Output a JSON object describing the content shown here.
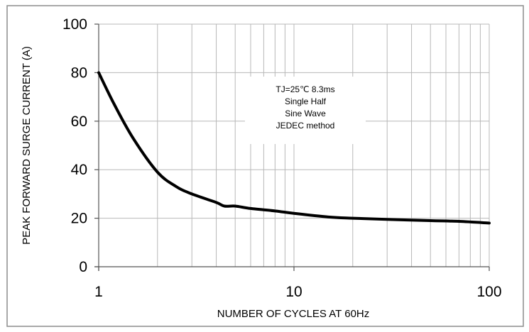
{
  "chart_data": {
    "type": "line",
    "title": "",
    "xlabel": "NUMBER OF CYCLES AT 60Hz",
    "ylabel": "PEAK FORWARD SURGE CURRENT (A)",
    "x_scale": "log",
    "xlim": [
      1,
      100
    ],
    "ylim": [
      0,
      100
    ],
    "x_ticks": [
      1,
      10,
      100
    ],
    "x_tick_labels": [
      "1",
      "10",
      "100"
    ],
    "y_ticks": [
      0,
      20,
      40,
      60,
      80,
      100
    ],
    "y_tick_labels": [
      "0",
      "20",
      "40",
      "60",
      "80",
      "100"
    ],
    "grid": true,
    "legend": "none",
    "annotation": [
      "TJ=25℃ 8.3ms",
      "Single Half",
      "Sine Wave",
      "JEDEC method"
    ],
    "series": [
      {
        "x": [
          1,
          1.2,
          1.5,
          2,
          2.5,
          3,
          4,
          4.4,
          5,
          6,
          8,
          10,
          15,
          20,
          30,
          50,
          70,
          100
        ],
        "y": [
          80,
          67,
          53,
          39,
          33,
          30,
          26.5,
          25,
          25,
          24,
          23,
          22,
          20.5,
          20,
          19.5,
          19,
          18.7,
          18
        ]
      }
    ],
    "line_color": "#000000",
    "grid_color": "#b8b8b8"
  }
}
